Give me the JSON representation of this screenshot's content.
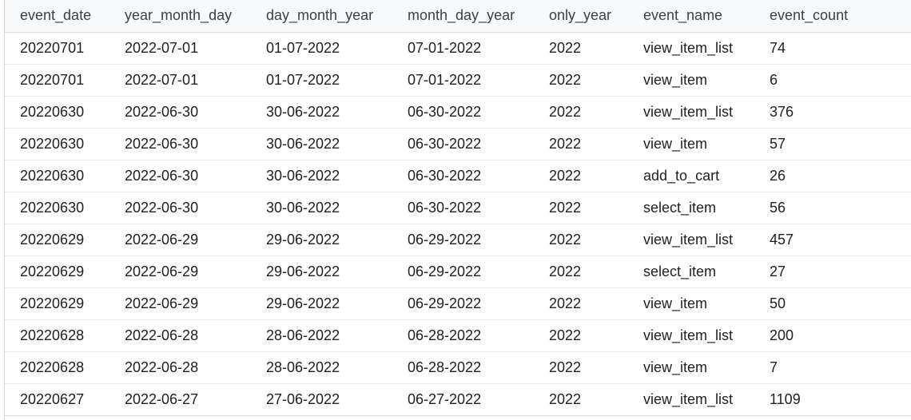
{
  "results_table": {
    "columns": [
      "event_date",
      "year_month_day",
      "day_month_year",
      "month_day_year",
      "only_year",
      "event_name",
      "event_count"
    ],
    "rows": [
      [
        "20220701",
        "2022-07-01",
        "01-07-2022",
        "07-01-2022",
        "2022",
        "view_item_list",
        "74"
      ],
      [
        "20220701",
        "2022-07-01",
        "01-07-2022",
        "07-01-2022",
        "2022",
        "view_item",
        "6"
      ],
      [
        "20220630",
        "2022-06-30",
        "30-06-2022",
        "06-30-2022",
        "2022",
        "view_item_list",
        "376"
      ],
      [
        "20220630",
        "2022-06-30",
        "30-06-2022",
        "06-30-2022",
        "2022",
        "view_item",
        "57"
      ],
      [
        "20220630",
        "2022-06-30",
        "30-06-2022",
        "06-30-2022",
        "2022",
        "add_to_cart",
        "26"
      ],
      [
        "20220630",
        "2022-06-30",
        "30-06-2022",
        "06-30-2022",
        "2022",
        "select_item",
        "56"
      ],
      [
        "20220629",
        "2022-06-29",
        "29-06-2022",
        "06-29-2022",
        "2022",
        "view_item_list",
        "457"
      ],
      [
        "20220629",
        "2022-06-29",
        "29-06-2022",
        "06-29-2022",
        "2022",
        "select_item",
        "27"
      ],
      [
        "20220629",
        "2022-06-29",
        "29-06-2022",
        "06-29-2022",
        "2022",
        "view_item",
        "50"
      ],
      [
        "20220628",
        "2022-06-28",
        "28-06-2022",
        "06-28-2022",
        "2022",
        "view_item_list",
        "200"
      ],
      [
        "20220628",
        "2022-06-28",
        "28-06-2022",
        "06-28-2022",
        "2022",
        "view_item",
        "7"
      ],
      [
        "20220627",
        "2022-06-27",
        "27-06-2022",
        "06-27-2022",
        "2022",
        "view_item_list",
        "1109"
      ]
    ]
  }
}
